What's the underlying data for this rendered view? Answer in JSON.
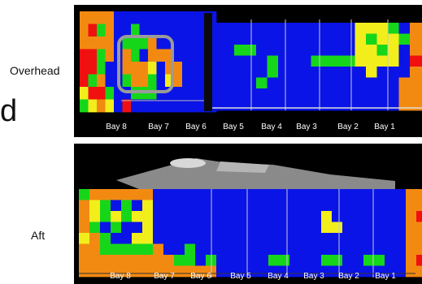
{
  "figure": {
    "partial_glyph": "d",
    "colors": {
      "blue": "#0a14e6",
      "green": "#16d61a",
      "yellow": "#f2ee1c",
      "orange": "#f28a12",
      "red": "#f01010",
      "panel_background": "#000000"
    }
  },
  "overhead": {
    "label": "Overhead",
    "bays": [
      "Bay 8",
      "Bay 7",
      "Bay 6",
      "Bay 5",
      "Bay 4",
      "Bay 3",
      "Bay 2",
      "Bay 1"
    ]
  },
  "aft": {
    "label": "Aft",
    "bays": [
      "Bay 8",
      "Bay 7",
      "Bay 6",
      "Bay 5",
      "Bay 4",
      "Bay 3",
      "Bay 2",
      "Bay 1"
    ]
  }
}
